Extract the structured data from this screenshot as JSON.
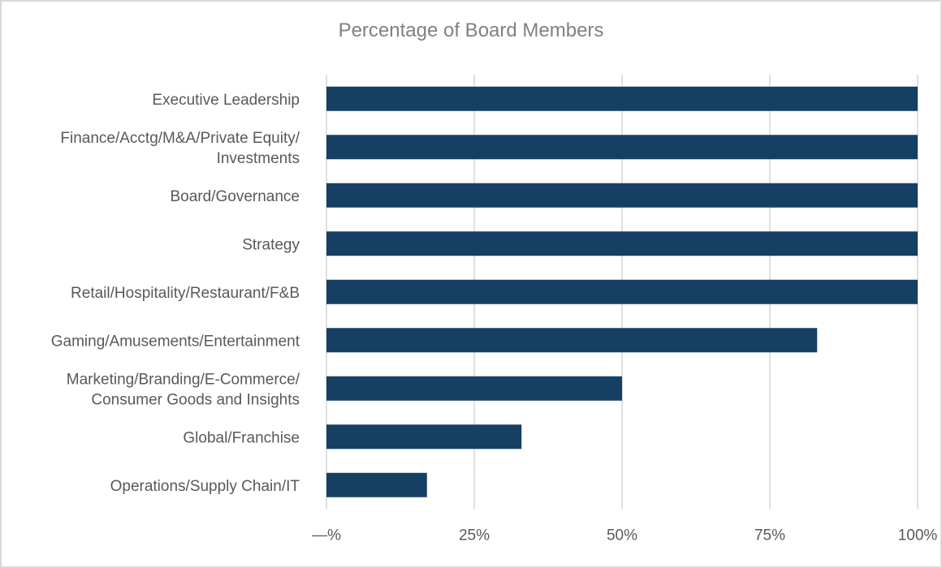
{
  "chart_data": {
    "type": "bar",
    "orientation": "horizontal",
    "title": "Percentage of Board Members",
    "xlabel": "",
    "ylabel": "",
    "categories": [
      [
        "Executive Leadership"
      ],
      [
        "Finance/Acctg/M&A/Private Equity/",
        "Investments"
      ],
      [
        "Board/Governance"
      ],
      [
        "Strategy"
      ],
      [
        "Retail/Hospitality/Restaurant/F&B"
      ],
      [
        "Gaming/Amusements/Entertainment"
      ],
      [
        "Marketing/Branding/E-Commerce/",
        "Consumer Goods and Insights"
      ],
      [
        "Global/Franchise"
      ],
      [
        "Operations/Supply Chain/IT"
      ]
    ],
    "values": [
      100,
      100,
      100,
      100,
      100,
      83,
      50,
      33,
      17
    ],
    "xlim": [
      0,
      100
    ],
    "x_ticks": [
      0,
      25,
      50,
      75,
      100
    ],
    "x_tick_labels": [
      "—%",
      "25%",
      "50%",
      "75%",
      "100%"
    ],
    "grid": "vertical",
    "legend": "none",
    "bar_color": "#163f64",
    "grid_color": "#e0e0e0"
  }
}
